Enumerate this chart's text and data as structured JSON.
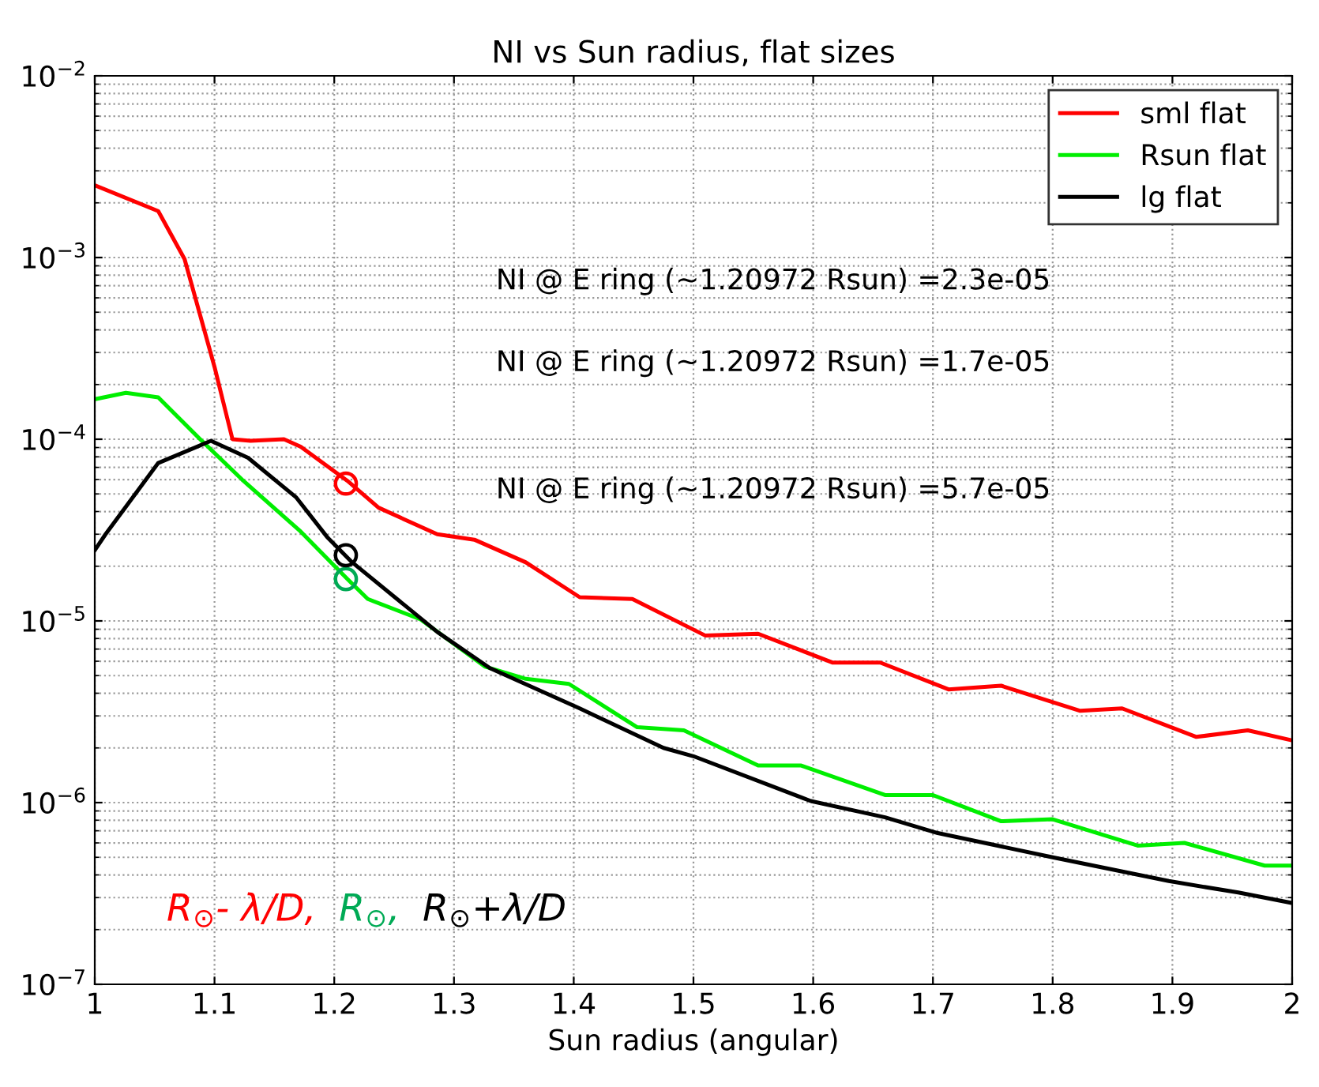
{
  "chart_data": {
    "type": "line",
    "title": "NI vs Sun radius, flat sizes",
    "xlabel": "Sun radius (angular)",
    "log": "y",
    "grid": true,
    "legend": "top right",
    "line_style": "solid",
    "marker": "none",
    "xlim": [
      1,
      2
    ],
    "xticks": [
      1,
      1.1,
      1.2,
      1.3,
      1.4,
      1.5,
      1.6,
      1.7,
      1.8,
      1.9,
      2
    ],
    "ylim": [
      1e-07,
      0.01
    ],
    "yticks": [
      {
        "value": 1e-07,
        "label": "10$^{−7}$"
      },
      {
        "value": 1e-06,
        "label": "10$^{−6}$"
      },
      {
        "value": 1e-05,
        "label": "10$^{−5}$"
      },
      {
        "value": 0.0001,
        "label": "10$^{−4}$"
      },
      {
        "value": 0.001,
        "label": "10$^{−3}$"
      },
      {
        "value": 0.01,
        "label": "10$^{−2}$"
      }
    ],
    "series": [
      {
        "name": "sml flat",
        "color": "#ff0000",
        "x": [
          1.0,
          1.053,
          1.075,
          1.1,
          1.115,
          1.13,
          1.158,
          1.172,
          1.211,
          1.237,
          1.286,
          1.317,
          1.36,
          1.405,
          1.449,
          1.51,
          1.554,
          1.616,
          1.656,
          1.713,
          1.757,
          1.823,
          1.858,
          1.92,
          1.963,
          2.0
        ],
        "values": [
          0.0025,
          0.0018,
          0.00098,
          0.00025,
          0.0001,
          9.8e-05,
          0.0001,
          9.1e-05,
          5.9e-05,
          4.2e-05,
          3e-05,
          2.8e-05,
          2.1e-05,
          1.35e-05,
          1.32e-05,
          8.3e-06,
          8.5e-06,
          5.9e-06,
          5.9e-06,
          4.2e-06,
          4.4e-06,
          3.2e-06,
          3.3e-06,
          2.3e-06,
          2.5e-06,
          2.2e-06
        ]
      },
      {
        "name": "Rsun flat",
        "color": "#00ee00",
        "x": [
          1.0,
          1.026,
          1.053,
          1.088,
          1.123,
          1.172,
          1.211,
          1.228,
          1.272,
          1.326,
          1.36,
          1.396,
          1.453,
          1.492,
          1.554,
          1.59,
          1.66,
          1.7,
          1.757,
          1.8,
          1.871,
          1.91,
          1.977,
          2.0
        ],
        "values": [
          0.000166,
          0.00018,
          0.00017,
          0.0001,
          6e-05,
          3.1e-05,
          1.7e-05,
          1.32e-05,
          1.02e-05,
          5.6e-06,
          4.8e-06,
          4.5e-06,
          2.6e-06,
          2.5e-06,
          1.6e-06,
          1.6e-06,
          1.1e-06,
          1.1e-06,
          7.9e-07,
          8.1e-07,
          5.8e-07,
          6e-07,
          4.5e-07,
          4.5e-07
        ]
      },
      {
        "name": "lg flat",
        "color": "#000000",
        "x": [
          1.0,
          1.009,
          1.053,
          1.097,
          1.128,
          1.168,
          1.194,
          1.215,
          1.286,
          1.33,
          1.405,
          1.475,
          1.5,
          1.598,
          1.66,
          1.704,
          1.8,
          1.897,
          1.955,
          2.0
        ],
        "values": [
          2.45e-05,
          3e-05,
          7.4e-05,
          9.8e-05,
          7.9e-05,
          4.8e-05,
          2.9e-05,
          2.1e-05,
          8.7e-06,
          5.5e-06,
          3.3e-06,
          2e-06,
          1.8e-06,
          1.02e-06,
          8.3e-07,
          6.8e-07,
          5e-07,
          3.7e-07,
          3.2e-07,
          2.8e-07
        ]
      },
      {
        "type": "scatter",
        "marker": "circle",
        "color": "#ff0000",
        "x": [
          1.20972
        ],
        "values": [
          5.7e-05
        ]
      },
      {
        "type": "scatter",
        "marker": "circle",
        "color": "#00aa55",
        "x": [
          1.20972
        ],
        "values": [
          1.7e-05
        ]
      },
      {
        "type": "scatter",
        "marker": "circle",
        "color": "#000000",
        "x": [
          1.20972
        ],
        "values": [
          2.3e-05
        ]
      }
    ],
    "annotations": [
      "NI @ E ring (~1.20972 Rsun) =2.3e-05",
      "NI @ E ring (~1.20972 Rsun) =1.7e-05",
      "NI @ E ring (~1.20972 Rsun) =5.7e-05",
      "R$_{⊙}$- λ/D,",
      "R$_{⊙}$,",
      "R$_{⊙}$+λ/D"
    ]
  }
}
